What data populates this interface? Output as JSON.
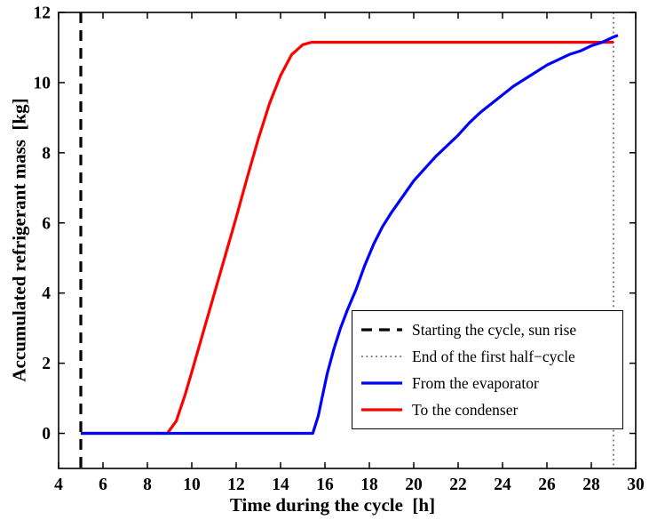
{
  "chart_data": {
    "type": "line",
    "title": "",
    "xlabel": "Time during the cycle  [h]",
    "ylabel": "Accumulated refrigerant mass  [kg]",
    "xlim": [
      4,
      30
    ],
    "ylim": [
      -1,
      12
    ],
    "xticks": [
      4,
      6,
      8,
      10,
      12,
      14,
      16,
      18,
      20,
      22,
      24,
      26,
      28,
      30
    ],
    "yticks": [
      0,
      2,
      4,
      6,
      8,
      10,
      12
    ],
    "grid": false,
    "frame_color": "#000000",
    "legend_position": "inside-lower-right",
    "vlines": [
      {
        "x": 5,
        "style": "dashed",
        "color": "#000000",
        "label": "Starting the cycle, sun rise"
      },
      {
        "x": 29,
        "style": "dotted",
        "color": "#555555",
        "label": "End of the first half−cycle"
      }
    ],
    "series": [
      {
        "name": "To the condenser",
        "color": "#ff0000",
        "style": "solid",
        "points": [
          [
            5,
            0
          ],
          [
            8.9,
            0
          ],
          [
            9.3,
            0.35
          ],
          [
            9.7,
            1.1
          ],
          [
            10,
            1.75
          ],
          [
            10.5,
            2.85
          ],
          [
            11,
            3.95
          ],
          [
            11.5,
            5.05
          ],
          [
            12,
            6.15
          ],
          [
            12.5,
            7.3
          ],
          [
            13,
            8.4
          ],
          [
            13.5,
            9.4
          ],
          [
            14,
            10.2
          ],
          [
            14.5,
            10.8
          ],
          [
            15,
            11.08
          ],
          [
            15.4,
            11.15
          ],
          [
            18,
            11.15
          ],
          [
            22,
            11.15
          ],
          [
            26,
            11.15
          ],
          [
            29,
            11.15
          ]
        ]
      },
      {
        "name": "From the evaporator",
        "color": "#0000ff",
        "style": "solid",
        "points": [
          [
            5,
            0
          ],
          [
            15.45,
            0
          ],
          [
            15.7,
            0.5
          ],
          [
            15.9,
            1.1
          ],
          [
            16.1,
            1.7
          ],
          [
            16.4,
            2.4
          ],
          [
            16.7,
            3.0
          ],
          [
            17,
            3.5
          ],
          [
            17.4,
            4.1
          ],
          [
            17.8,
            4.8
          ],
          [
            18.2,
            5.4
          ],
          [
            18.6,
            5.9
          ],
          [
            19,
            6.3
          ],
          [
            19.5,
            6.75
          ],
          [
            20,
            7.2
          ],
          [
            20.5,
            7.55
          ],
          [
            21,
            7.9
          ],
          [
            21.5,
            8.2
          ],
          [
            22,
            8.5
          ],
          [
            22.5,
            8.85
          ],
          [
            23,
            9.15
          ],
          [
            23.5,
            9.4
          ],
          [
            24,
            9.65
          ],
          [
            24.5,
            9.9
          ],
          [
            25,
            10.1
          ],
          [
            25.5,
            10.3
          ],
          [
            26,
            10.5
          ],
          [
            26.5,
            10.65
          ],
          [
            27,
            10.8
          ],
          [
            27.5,
            10.9
          ],
          [
            28,
            11.05
          ],
          [
            28.5,
            11.15
          ],
          [
            29,
            11.3
          ],
          [
            29.2,
            11.35
          ]
        ]
      }
    ],
    "legend": [
      {
        "label": "Starting the cycle, sun rise",
        "style": "dashed",
        "color": "#000000"
      },
      {
        "label": "End of the first half−cycle",
        "style": "dotted",
        "color": "#555555"
      },
      {
        "label": "From the evaporator",
        "style": "solid",
        "color": "#0000ff"
      },
      {
        "label": "To the condenser",
        "style": "solid",
        "color": "#ff0000"
      }
    ]
  }
}
